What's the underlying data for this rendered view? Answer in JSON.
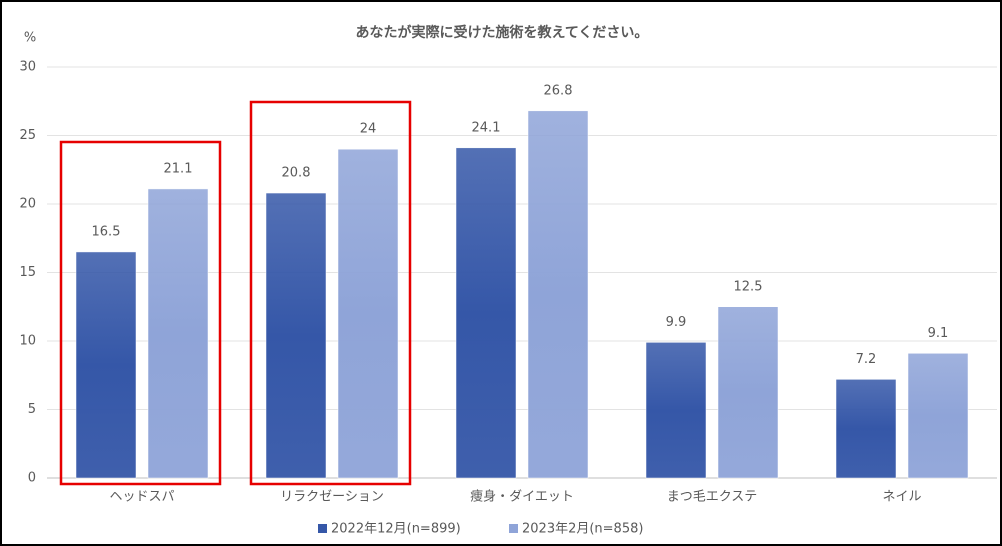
{
  "chart_data": {
    "type": "bar",
    "title": "あなたが実際に受けた施術を教えてください。",
    "y_label": "%",
    "categories": [
      "ヘッドスパ",
      "リラクゼーション",
      "痩身・ダイエット",
      "まつ毛エクステ",
      "ネイル"
    ],
    "series": [
      {
        "name": "2022年12月(n=899)",
        "color": "#3557a8",
        "values": [
          16.5,
          20.8,
          24.1,
          9.9,
          7.2
        ]
      },
      {
        "name": "2023年2月(n=858)",
        "color": "#8fa4d8",
        "values": [
          21.1,
          24,
          26.8,
          12.5,
          9.1
        ]
      }
    ],
    "ylim": [
      0,
      30
    ],
    "yticks": [
      0,
      5,
      10,
      15,
      20,
      25,
      30
    ],
    "grid": true,
    "legend": "bottom"
  }
}
